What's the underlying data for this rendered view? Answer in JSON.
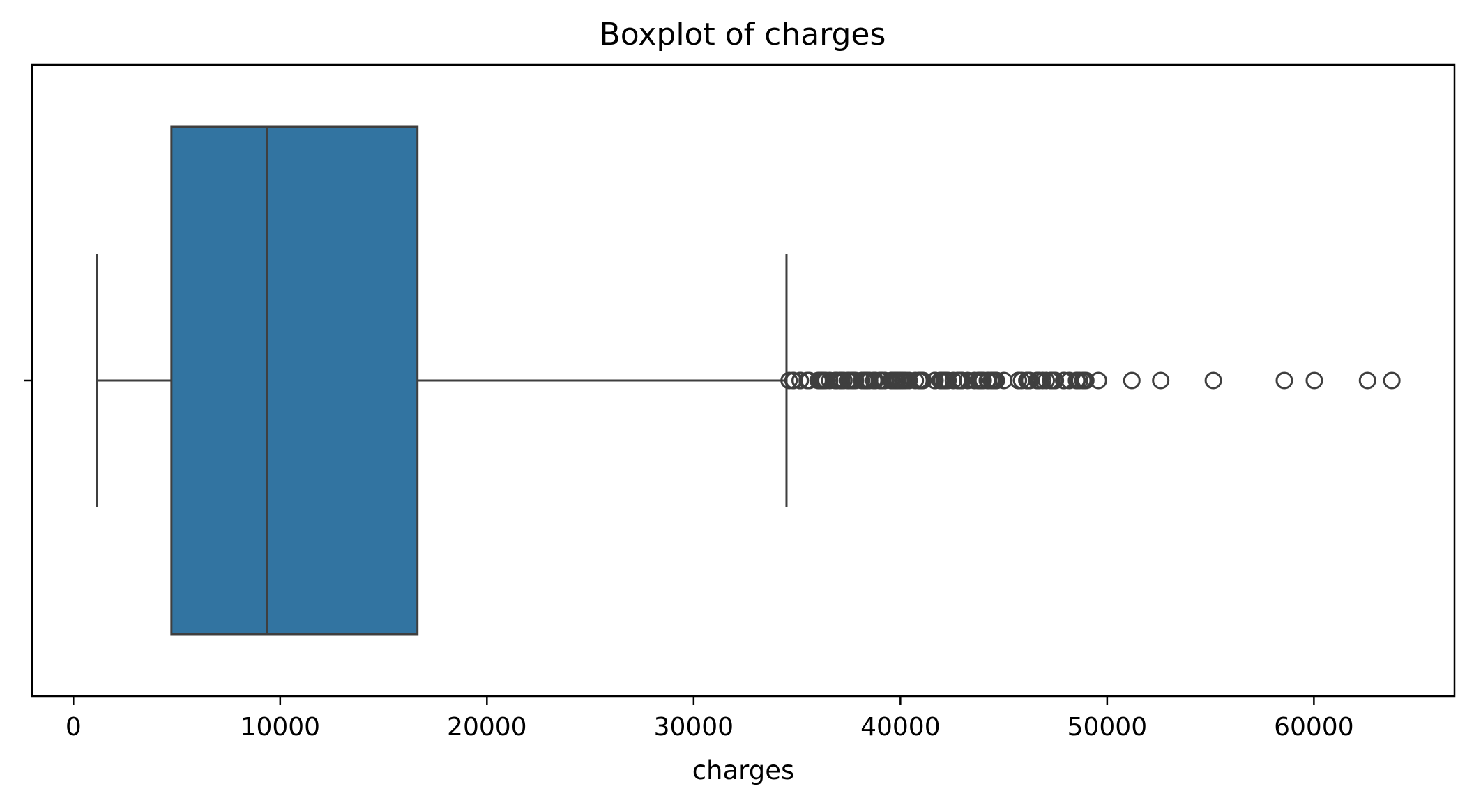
{
  "chart_data": {
    "type": "boxplot",
    "title": "Boxplot of charges",
    "xlabel": "charges",
    "ylabel": "",
    "orientation": "horizontal",
    "xlim": [
      -2000,
      66800
    ],
    "xticks": [
      0,
      10000,
      20000,
      30000,
      40000,
      50000,
      60000
    ],
    "xtick_labels": [
      "0",
      "10000",
      "20000",
      "30000",
      "40000",
      "50000",
      "60000"
    ],
    "box": {
      "whisker_low": 1122,
      "q1": 4740,
      "median": 9382,
      "q3": 16640,
      "whisker_high": 34490
    },
    "outliers": [
      34617,
      34806,
      34839,
      35148,
      35160,
      35491,
      35585,
      36021,
      36085,
      36124,
      36197,
      36220,
      36307,
      36398,
      36580,
      36837,
      36898,
      36910,
      37079,
      37133,
      37165,
      37270,
      37465,
      37484,
      37607,
      37701,
      37742,
      37829,
      38126,
      38245,
      38282,
      38344,
      38415,
      38511,
      38709,
      38746,
      38792,
      38998,
      39047,
      39126,
      39241,
      39556,
      39597,
      39611,
      39725,
      39727,
      39774,
      39837,
      39871,
      39983,
      40003,
      40103,
      40182,
      40273,
      40419,
      40720,
      40904,
      40932,
      40941,
      40974,
      41034,
      41097,
      41661,
      41676,
      41919,
      41949,
      41999,
      42112,
      42124,
      42211,
      42303,
      42560,
      42760,
      42856,
      42969,
      42983,
      43254,
      43578,
      43753,
      43813,
      43896,
      43921,
      44008,
      44202,
      44260,
      44400,
      44423,
      44501,
      44585,
      44641,
      44642,
      45008,
      45702,
      45710,
      45863,
      46113,
      46130,
      46200,
      46255,
      46599,
      46661,
      46718,
      46889,
      47055,
      47269,
      47291,
      47305,
      47403,
      47462,
      47497,
      47896,
      47928,
      48173,
      48517,
      48549,
      48675,
      48824,
      48885,
      48970,
      49577,
      51195,
      52591,
      55135,
      58571,
      60021,
      62593,
      63770
    ],
    "box_color": "#3274a1",
    "line_color": "#3f3f3f"
  }
}
